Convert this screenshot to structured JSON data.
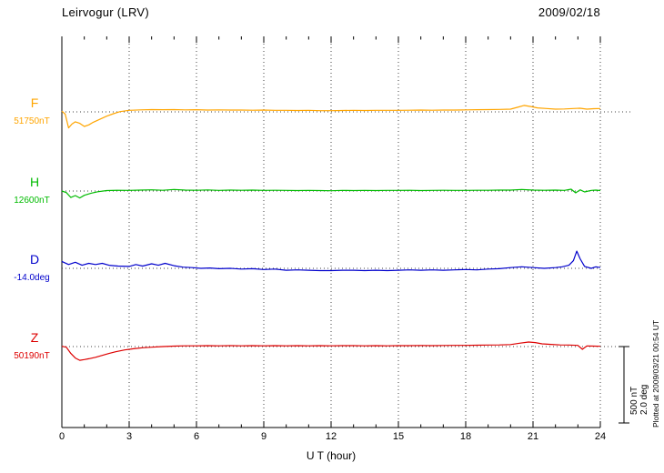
{
  "header": {
    "station": "Leirvogur (LRV)",
    "date": "2009/02/18"
  },
  "axis": {
    "xlabel": "U T (hour)",
    "tick_labels": [
      "0",
      "3",
      "6",
      "9",
      "12",
      "15",
      "18",
      "21",
      "24"
    ]
  },
  "scale_bar": {
    "nt": "500 nT",
    "deg": "2.0 deg"
  },
  "footer": {
    "plotted_at": "Plotted at 2009/03/21 00:54 UT"
  },
  "chart_data": {
    "type": "line",
    "title": "Leirvogur (LRV)",
    "subtitle": "2009/02/18",
    "xlabel": "U T (hour)",
    "xlim": [
      0,
      24
    ],
    "xticks": [
      0,
      3,
      6,
      9,
      12,
      15,
      18,
      21,
      24
    ],
    "grid": "dotted-vertical-at-3h",
    "legend_position": "left-of-traces",
    "scale": {
      "nT_per_bar": 500,
      "deg_per_bar": 2.0
    },
    "series": [
      {
        "name": "F",
        "unit": "nT",
        "baseline_label": "51750nT",
        "baseline_value": 51750,
        "color": "#ffa500",
        "x": [
          0,
          0.15,
          0.3,
          0.45,
          0.6,
          0.8,
          1.0,
          1.2,
          1.4,
          1.7,
          2.0,
          2.3,
          2.6,
          3.0,
          3.5,
          4,
          4.5,
          5,
          5.5,
          6,
          6.5,
          7,
          7.5,
          8,
          8.5,
          9,
          9.5,
          10,
          10.5,
          11,
          11.5,
          12,
          12.5,
          13,
          13.5,
          14,
          14.5,
          15,
          15.5,
          16,
          16.5,
          17,
          17.5,
          18,
          18.5,
          19,
          19.5,
          20,
          20.3,
          20.6,
          20.9,
          21.2,
          21.6,
          22,
          22.4,
          22.8,
          23.1,
          23.4,
          23.7,
          24
        ],
        "offsets": [
          5,
          -15,
          -105,
          -80,
          -65,
          -75,
          -95,
          -85,
          -68,
          -48,
          -28,
          -12,
          2,
          10,
          13,
          15,
          14,
          15,
          13,
          14,
          12,
          13,
          12,
          12,
          11,
          12,
          10,
          10,
          9,
          10,
          8,
          8,
          9,
          10,
          9,
          10,
          10,
          10,
          11,
          12,
          11,
          12,
          12,
          13,
          14,
          15,
          16,
          18,
          30,
          42,
          35,
          26,
          22,
          18,
          19,
          22,
          24,
          18,
          21,
          22
        ]
      },
      {
        "name": "H",
        "unit": "nT",
        "baseline_label": "12600nT",
        "baseline_value": 12600,
        "color": "#00bb00",
        "x": [
          0,
          0.2,
          0.4,
          0.6,
          0.8,
          1.0,
          1.3,
          1.6,
          2.0,
          2.5,
          3,
          3.5,
          4,
          4.5,
          5,
          5.5,
          6,
          6.5,
          7,
          7.5,
          8,
          8.5,
          9,
          9.5,
          10,
          10.5,
          11,
          11.5,
          12,
          12.5,
          13,
          13.5,
          14,
          14.5,
          15,
          15.5,
          16,
          16.5,
          17,
          17.5,
          18,
          18.5,
          19,
          19.5,
          20,
          20.5,
          21,
          21.5,
          22,
          22.4,
          22.7,
          22.9,
          23.1,
          23.3,
          23.6,
          23.8,
          24
        ],
        "offsets": [
          0,
          -10,
          -42,
          -30,
          -45,
          -28,
          -14,
          -5,
          3,
          5,
          4,
          6,
          8,
          5,
          10,
          6,
          5,
          7,
          4,
          6,
          5,
          6,
          4,
          5,
          4,
          3,
          4,
          3,
          2,
          4,
          3,
          4,
          3,
          4,
          4,
          5,
          3,
          4,
          5,
          4,
          4,
          5,
          5,
          6,
          6,
          10,
          6,
          5,
          6,
          4,
          12,
          -12,
          8,
          -6,
          4,
          6,
          3
        ]
      },
      {
        "name": "D",
        "unit": "deg",
        "baseline_label": "-14.0deg",
        "baseline_value": -14.0,
        "color": "#0000cc",
        "x": [
          0,
          0.3,
          0.6,
          0.9,
          1.2,
          1.5,
          1.8,
          2.1,
          2.5,
          3,
          3.3,
          3.6,
          4,
          4.3,
          4.6,
          5,
          5.4,
          5.8,
          6.2,
          6.6,
          7,
          7.5,
          8,
          8.5,
          9,
          9.5,
          10,
          10.5,
          11,
          11.5,
          12,
          12.5,
          13,
          13.5,
          14,
          14.5,
          15,
          15.5,
          16,
          16.5,
          17,
          17.5,
          18,
          18.5,
          19,
          19.5,
          20,
          20.5,
          21,
          21.5,
          22,
          22.3,
          22.6,
          22.8,
          22.95,
          23.1,
          23.3,
          23.6,
          23.8,
          24
        ],
        "offsets": [
          0.18,
          0.1,
          0.16,
          0.08,
          0.13,
          0.1,
          0.13,
          0.08,
          0.06,
          0.05,
          0.1,
          0.06,
          0.12,
          0.08,
          0.13,
          0.07,
          0.03,
          0.02,
          0.0,
          0.01,
          -0.01,
          0.0,
          -0.02,
          -0.01,
          -0.03,
          -0.02,
          -0.05,
          -0.04,
          -0.05,
          -0.06,
          -0.06,
          -0.05,
          -0.05,
          -0.06,
          -0.05,
          -0.06,
          -0.05,
          -0.04,
          -0.05,
          -0.04,
          -0.05,
          -0.04,
          -0.03,
          -0.04,
          -0.02,
          -0.01,
          0.02,
          0.04,
          0.02,
          0.0,
          0.02,
          0.04,
          0.08,
          0.2,
          0.45,
          0.25,
          0.05,
          0.0,
          0.04,
          0.02
        ]
      },
      {
        "name": "Z",
        "unit": "nT",
        "baseline_label": "50190nT",
        "baseline_value": 50190,
        "color": "#dd0000",
        "x": [
          0,
          0.2,
          0.4,
          0.6,
          0.8,
          1.0,
          1.2,
          1.5,
          1.8,
          2.1,
          2.4,
          2.8,
          3.2,
          3.6,
          4,
          4.5,
          5,
          5.5,
          6,
          6.5,
          7,
          7.5,
          8,
          8.5,
          9,
          9.5,
          10,
          10.5,
          11,
          11.5,
          12,
          12.5,
          13,
          13.5,
          14,
          14.5,
          15,
          15.5,
          16,
          16.5,
          17,
          17.5,
          18,
          18.5,
          19,
          19.5,
          20,
          20.4,
          20.8,
          21.1,
          21.4,
          21.8,
          22.2,
          22.6,
          23,
          23.2,
          23.4,
          23.7,
          24
        ],
        "offsets": [
          2,
          -4,
          -45,
          -75,
          -90,
          -85,
          -80,
          -70,
          -58,
          -45,
          -34,
          -22,
          -14,
          -8,
          -4,
          0,
          3,
          5,
          5,
          6,
          5,
          6,
          5,
          6,
          5,
          6,
          5,
          6,
          5,
          6,
          5,
          6,
          6,
          5,
          6,
          5,
          6,
          6,
          7,
          6,
          7,
          8,
          8,
          9,
          10,
          11,
          13,
          22,
          30,
          26,
          18,
          14,
          11,
          10,
          8,
          -18,
          4,
          3,
          2
        ]
      }
    ]
  }
}
